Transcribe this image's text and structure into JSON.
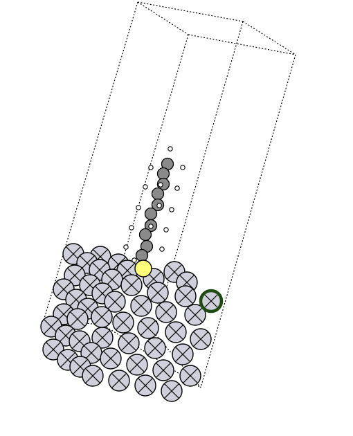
{
  "colors": {
    "background": "#ffffff",
    "box_edges": "#000000",
    "slab_atom_fill": "#d0d0dc",
    "slab_atom_stroke": "#000000",
    "chain_atom_fill": "#8a8a8a",
    "hydrogen_fill": "#ffffff",
    "anchor_atom_fill": "#ffff7a",
    "highlight_ring": "#1f4a12"
  },
  "legend": {}
}
